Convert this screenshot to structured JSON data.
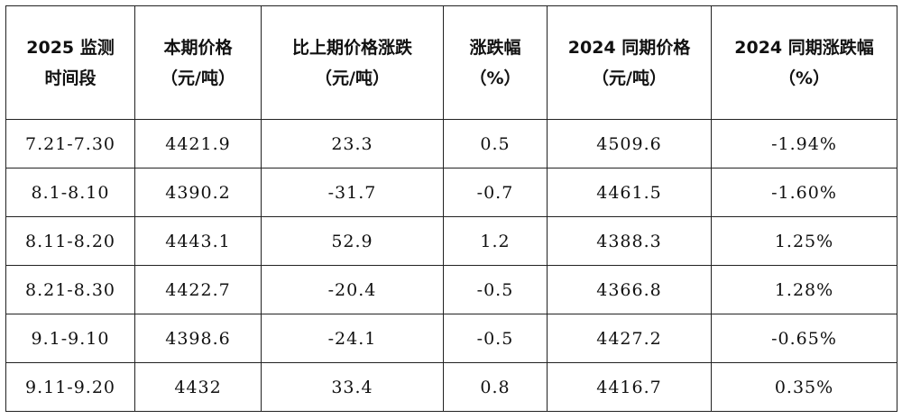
{
  "table": {
    "headers": [
      [
        "2025 监测",
        "时间段"
      ],
      [
        "本期价格",
        "（元/吨）"
      ],
      [
        "比上期价格涨跌",
        "（元/吨）"
      ],
      [
        "涨跌幅",
        "（%）"
      ],
      [
        "2024 同期价格",
        "（元/吨）"
      ],
      [
        "2024 同期涨跌幅",
        "（%）"
      ]
    ],
    "rows": [
      [
        "7.21-7.30",
        "4421.9",
        "23.3",
        "0.5",
        "4509.6",
        "-1.94%"
      ],
      [
        "8.1-8.10",
        "4390.2",
        "-31.7",
        "-0.7",
        "4461.5",
        "-1.60%"
      ],
      [
        "8.11-8.20",
        "4443.1",
        "52.9",
        "1.2",
        "4388.3",
        "1.25%"
      ],
      [
        "8.21-8.30",
        "4422.7",
        "-20.4",
        "-0.5",
        "4366.8",
        "1.28%"
      ],
      [
        "9.1-9.10",
        "4398.6",
        "-24.1",
        "-0.5",
        "4427.2",
        "-0.65%"
      ],
      [
        "9.11-9.20",
        "4432",
        "33.4",
        "0.8",
        "4416.7",
        "0.35%"
      ]
    ]
  }
}
